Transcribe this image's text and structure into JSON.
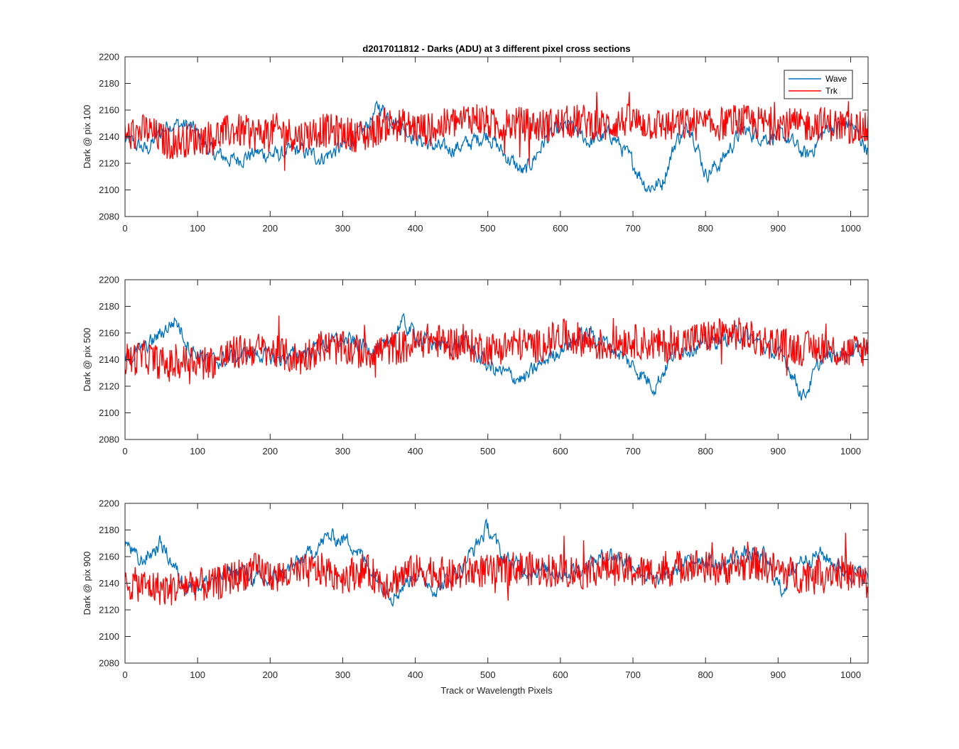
{
  "title": "d2017011812 - Darks (ADU) at 3 different pixel cross sections",
  "xlabel": "Track or Wavelength Pixels",
  "colors": {
    "Wave": "#0072BD",
    "Trk": "#FF0000",
    "axis": "#262626"
  },
  "legend": {
    "placement": "top-right",
    "entries": [
      "Wave",
      "Trk"
    ]
  },
  "chart_data": [
    {
      "type": "line",
      "ylabel": "Dark @ pix 100",
      "xlim": [
        0,
        1024
      ],
      "ylim": [
        2080,
        2200
      ],
      "xticks": [
        0,
        100,
        200,
        300,
        400,
        500,
        600,
        700,
        800,
        900,
        1000
      ],
      "yticks": [
        2080,
        2100,
        2120,
        2140,
        2160,
        2180,
        2200
      ],
      "series": [
        {
          "name": "Wave",
          "x": [
            0,
            30,
            60,
            90,
            120,
            150,
            180,
            210,
            240,
            270,
            300,
            330,
            350,
            380,
            410,
            440,
            470,
            500,
            520,
            550,
            580,
            610,
            640,
            670,
            700,
            720,
            740,
            760,
            780,
            800,
            820,
            850,
            880,
            910,
            940,
            970,
            1000,
            1024
          ],
          "values": [
            2138,
            2130,
            2150,
            2148,
            2128,
            2122,
            2128,
            2126,
            2130,
            2124,
            2132,
            2145,
            2163,
            2148,
            2136,
            2130,
            2134,
            2142,
            2128,
            2112,
            2138,
            2148,
            2136,
            2142,
            2120,
            2102,
            2105,
            2138,
            2148,
            2112,
            2120,
            2145,
            2140,
            2140,
            2125,
            2148,
            2150,
            2130
          ]
        },
        {
          "name": "Trk",
          "x": [
            0,
            30,
            60,
            90,
            120,
            150,
            180,
            210,
            240,
            270,
            300,
            330,
            360,
            390,
            420,
            450,
            480,
            510,
            540,
            570,
            600,
            630,
            660,
            690,
            720,
            750,
            780,
            810,
            840,
            870,
            900,
            930,
            960,
            990,
            1024
          ],
          "values": [
            2140,
            2145,
            2135,
            2138,
            2140,
            2145,
            2142,
            2145,
            2140,
            2145,
            2143,
            2140,
            2150,
            2148,
            2145,
            2150,
            2155,
            2148,
            2150,
            2148,
            2150,
            2152,
            2148,
            2152,
            2150,
            2148,
            2150,
            2148,
            2152,
            2150,
            2150,
            2148,
            2150,
            2148,
            2145
          ]
        }
      ]
    },
    {
      "type": "line",
      "ylabel": "Dark @ pix 500",
      "xlim": [
        0,
        1024
      ],
      "ylim": [
        2080,
        2200
      ],
      "xticks": [
        0,
        100,
        200,
        300,
        400,
        500,
        600,
        700,
        800,
        900,
        1000
      ],
      "yticks": [
        2080,
        2100,
        2120,
        2140,
        2160,
        2180,
        2200
      ],
      "series": [
        {
          "name": "Wave",
          "x": [
            0,
            30,
            50,
            70,
            90,
            120,
            150,
            180,
            210,
            240,
            270,
            300,
            330,
            360,
            380,
            410,
            440,
            470,
            500,
            520,
            550,
            580,
            610,
            640,
            670,
            700,
            730,
            760,
            790,
            820,
            850,
            880,
            910,
            935,
            960,
            990,
            1024
          ],
          "values": [
            2140,
            2150,
            2160,
            2170,
            2148,
            2138,
            2142,
            2145,
            2140,
            2145,
            2150,
            2155,
            2150,
            2148,
            2168,
            2155,
            2150,
            2152,
            2135,
            2130,
            2125,
            2140,
            2152,
            2160,
            2150,
            2135,
            2120,
            2148,
            2150,
            2155,
            2160,
            2150,
            2140,
            2112,
            2140,
            2145,
            2150
          ]
        },
        {
          "name": "Trk",
          "x": [
            0,
            30,
            60,
            90,
            120,
            150,
            180,
            210,
            240,
            270,
            300,
            330,
            360,
            390,
            420,
            450,
            480,
            510,
            540,
            570,
            600,
            630,
            660,
            690,
            720,
            750,
            780,
            810,
            840,
            870,
            900,
            930,
            960,
            990,
            1024
          ],
          "values": [
            2140,
            2142,
            2135,
            2140,
            2138,
            2145,
            2148,
            2145,
            2140,
            2150,
            2148,
            2145,
            2148,
            2150,
            2155,
            2152,
            2150,
            2148,
            2152,
            2150,
            2158,
            2155,
            2150,
            2155,
            2152,
            2150,
            2155,
            2158,
            2160,
            2155,
            2152,
            2148,
            2150,
            2145,
            2148
          ]
        }
      ]
    },
    {
      "type": "line",
      "ylabel": "Dark @ pix 900",
      "xlim": [
        0,
        1024
      ],
      "ylim": [
        2080,
        2200
      ],
      "xticks": [
        0,
        100,
        200,
        300,
        400,
        500,
        600,
        700,
        800,
        900,
        1000
      ],
      "yticks": [
        2080,
        2100,
        2120,
        2140,
        2160,
        2180,
        2200
      ],
      "series": [
        {
          "name": "Wave",
          "x": [
            0,
            20,
            50,
            80,
            100,
            130,
            160,
            190,
            220,
            250,
            280,
            310,
            340,
            370,
            400,
            430,
            460,
            480,
            500,
            520,
            550,
            580,
            610,
            640,
            670,
            700,
            730,
            760,
            790,
            820,
            850,
            880,
            905,
            930,
            960,
            990,
            1024
          ],
          "values": [
            2172,
            2155,
            2170,
            2140,
            2138,
            2145,
            2150,
            2140,
            2148,
            2160,
            2175,
            2172,
            2150,
            2130,
            2148,
            2135,
            2150,
            2165,
            2182,
            2160,
            2150,
            2150,
            2148,
            2155,
            2162,
            2155,
            2140,
            2150,
            2160,
            2152,
            2162,
            2160,
            2135,
            2158,
            2162,
            2150,
            2145
          ]
        },
        {
          "name": "Trk",
          "x": [
            0,
            30,
            60,
            90,
            120,
            150,
            180,
            210,
            240,
            270,
            300,
            330,
            360,
            390,
            420,
            450,
            480,
            510,
            540,
            570,
            600,
            630,
            660,
            690,
            720,
            750,
            780,
            810,
            840,
            870,
            900,
            930,
            960,
            990,
            1024
          ],
          "values": [
            2140,
            2138,
            2135,
            2140,
            2138,
            2145,
            2150,
            2145,
            2148,
            2150,
            2145,
            2150,
            2140,
            2148,
            2150,
            2145,
            2150,
            2148,
            2152,
            2150,
            2150,
            2148,
            2152,
            2150,
            2148,
            2150,
            2155,
            2150,
            2152,
            2155,
            2150,
            2145,
            2150,
            2148,
            2140
          ]
        }
      ]
    }
  ]
}
